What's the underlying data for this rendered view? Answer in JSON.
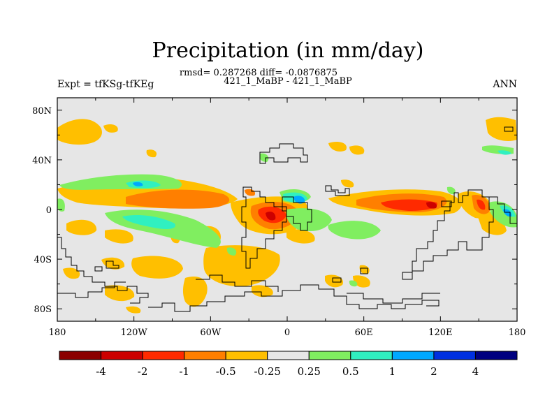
{
  "chart_data": {
    "type": "heatmap",
    "title": "Precipitation (in mm/day)",
    "stats_line": "rmsd= 0.287268 diff= -0.0876875",
    "case_line": "421_1_MaBP - 421_1_MaBP",
    "left_label": "Expt = tfKSg-tfKEg",
    "right_label": "ANN",
    "x_ticks": [
      "180",
      "120W",
      "60W",
      "0",
      "60E",
      "120E",
      "180"
    ],
    "x_tick_values": [
      -180,
      -120,
      -60,
      0,
      60,
      120,
      180
    ],
    "y_ticks": [
      "80N",
      "40N",
      "0",
      "40S",
      "80S"
    ],
    "y_tick_values": [
      80,
      40,
      0,
      -40,
      -80
    ],
    "xlim": [
      -180,
      180
    ],
    "ylim": [
      -90,
      90
    ],
    "colorbar": {
      "labels": [
        "-4",
        "-2",
        "-1",
        "-0.5",
        "-0.25",
        "0.25",
        "0.5",
        "1",
        "2",
        "4"
      ],
      "colors": [
        "#8b0000",
        "#cc0000",
        "#ff2a00",
        "#ff7f00",
        "#ffbf00",
        "#e6e6e6",
        "#80ee60",
        "#30f0c0",
        "#00a8ff",
        "#0030e0",
        "#000080"
      ]
    }
  }
}
